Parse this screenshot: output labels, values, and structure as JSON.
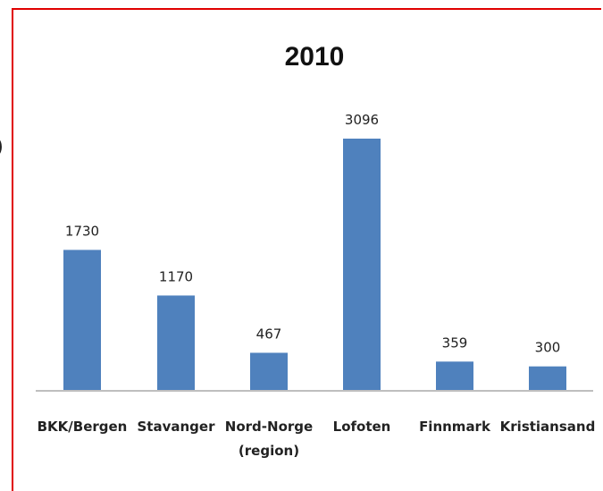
{
  "chart_data": {
    "type": "bar",
    "title": "2010",
    "categories": [
      "BKK/Bergen",
      "Stavanger",
      "Nord-Norge\n(region)",
      "Lofoten",
      "Finnmark",
      "Kristiansand"
    ],
    "values": [
      1730,
      1170,
      467,
      3096,
      359,
      300
    ],
    "data_labels": [
      "1730",
      "1170",
      "467",
      "3096",
      "359",
      "300"
    ],
    "xlabel": "",
    "ylabel": "",
    "ylim": [
      0,
      3500
    ],
    "grid": false,
    "legend": "none",
    "bar_color": "#4f81bd",
    "axis_color": "#bfbfbf"
  },
  "side_mark": ")"
}
